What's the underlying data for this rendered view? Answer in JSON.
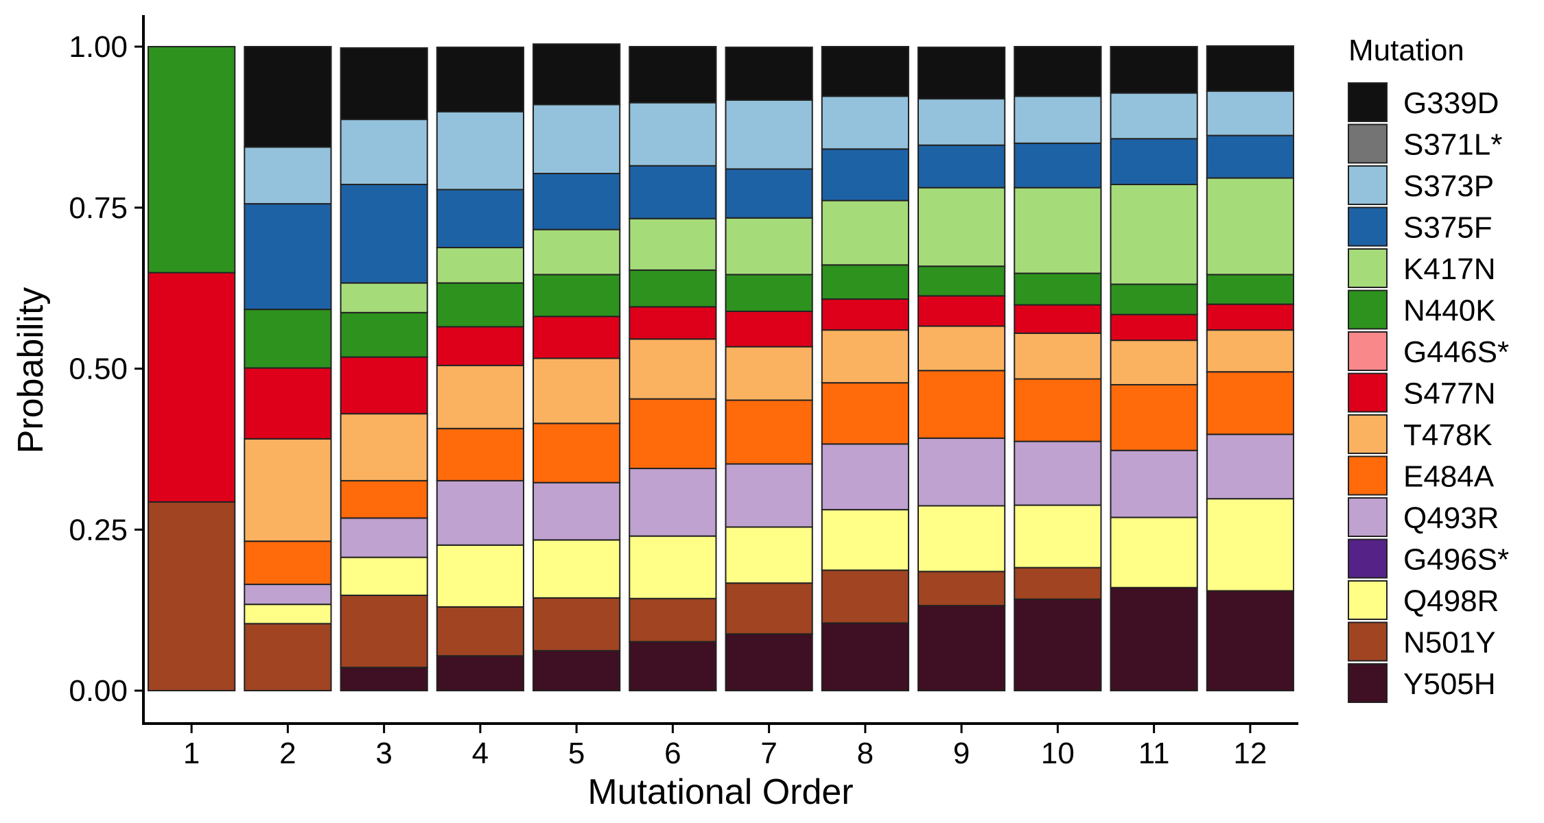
{
  "chart_data": {
    "type": "bar",
    "stacked": true,
    "xlabel": "Mutational Order",
    "ylabel": "Probability",
    "ylim": [
      0,
      1
    ],
    "yticks": [
      "0.00",
      "0.25",
      "0.50",
      "0.75",
      "1.00"
    ],
    "categories": [
      "1",
      "2",
      "3",
      "4",
      "5",
      "6",
      "7",
      "8",
      "9",
      "10",
      "11",
      "12"
    ],
    "legend": {
      "title": "Mutation",
      "position": "right"
    },
    "grid": false,
    "series": [
      {
        "name": "Y505H",
        "color": "#3F0F23",
        "values": [
          0,
          0,
          0.036,
          0.054,
          0.062,
          0.076,
          0.088,
          0.105,
          0.132,
          0.142,
          0.16,
          0.155
        ]
      },
      {
        "name": "N501Y",
        "color": "#A04422",
        "values": [
          0.293,
          0.104,
          0.112,
          0.076,
          0.082,
          0.067,
          0.079,
          0.082,
          0.053,
          0.049,
          0,
          0
        ]
      },
      {
        "name": "Q498R",
        "color": "#FFFF88",
        "values": [
          0,
          0.03,
          0.059,
          0.096,
          0.09,
          0.097,
          0.087,
          0.094,
          0.102,
          0.097,
          0.109,
          0.143
        ]
      },
      {
        "name": "G496S*",
        "color": "#552288",
        "values": [
          0,
          0,
          0,
          0,
          0,
          0,
          0,
          0,
          0,
          0,
          0,
          0
        ]
      },
      {
        "name": "Q493R",
        "color": "#BFA2CF",
        "values": [
          0,
          0.031,
          0.061,
          0.1,
          0.089,
          0.105,
          0.098,
          0.102,
          0.105,
          0.099,
          0.104,
          0.1
        ]
      },
      {
        "name": "E484A",
        "color": "#FF6A0A",
        "values": [
          0,
          0.067,
          0.058,
          0.081,
          0.092,
          0.108,
          0.099,
          0.095,
          0.105,
          0.097,
          0.102,
          0.097
        ]
      },
      {
        "name": "T478K",
        "color": "#FAB261",
        "values": [
          0,
          0.159,
          0.104,
          0.098,
          0.101,
          0.093,
          0.083,
          0.082,
          0.069,
          0.071,
          0.069,
          0.065
        ]
      },
      {
        "name": "G446S*",
        "color": "#F8888A",
        "values": [
          0,
          0,
          0,
          0,
          0,
          0,
          0,
          0,
          0,
          0,
          0,
          0
        ]
      },
      {
        "name": "S477N",
        "color": "#DE001A",
        "values": [
          0.356,
          0.11,
          0.088,
          0.06,
          0.065,
          0.05,
          0.055,
          0.048,
          0.047,
          0.044,
          0.04,
          0.04
        ]
      },
      {
        "name": "N440K",
        "color": "#2E921E",
        "values": [
          0.351,
          0.091,
          0.069,
          0.068,
          0.065,
          0.057,
          0.057,
          0.053,
          0.046,
          0.049,
          0.047,
          0.046
        ]
      },
      {
        "name": "K417N",
        "color": "#A6DB7A",
        "values": [
          0,
          0,
          0.046,
          0.055,
          0.07,
          0.08,
          0.088,
          0.1,
          0.122,
          0.133,
          0.155,
          0.15
        ]
      },
      {
        "name": "S375F",
        "color": "#1E62A6",
        "values": [
          0,
          0.164,
          0.153,
          0.09,
          0.087,
          0.082,
          0.076,
          0.08,
          0.066,
          0.069,
          0.071,
          0.066
        ]
      },
      {
        "name": "S373P",
        "color": "#94C2DC",
        "values": [
          0,
          0.088,
          0.101,
          0.121,
          0.107,
          0.098,
          0.107,
          0.082,
          0.072,
          0.073,
          0.071,
          0.069
        ]
      },
      {
        "name": "S371L*",
        "color": "#747474",
        "values": [
          0,
          0,
          0,
          0,
          0,
          0,
          0,
          0,
          0,
          0,
          0,
          0
        ]
      },
      {
        "name": "G339D",
        "color": "#111111",
        "values": [
          0,
          0.156,
          0.111,
          0.1,
          0.094,
          0.087,
          0.082,
          0.077,
          0.08,
          0.077,
          0.072,
          0.07
        ]
      }
    ],
    "legend_order": [
      "G339D",
      "S371L*",
      "S373P",
      "S375F",
      "K417N",
      "N440K",
      "G446S*",
      "S477N",
      "T478K",
      "E484A",
      "Q493R",
      "G496S*",
      "Q498R",
      "N501Y",
      "Y505H"
    ]
  }
}
